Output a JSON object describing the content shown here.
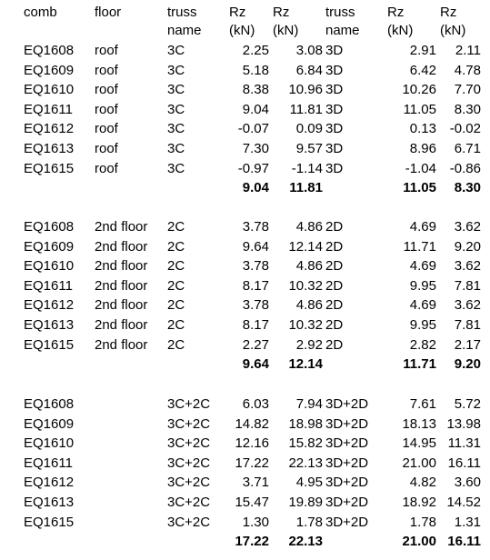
{
  "headers": {
    "comb": "comb",
    "floor": "floor",
    "truss1": [
      "truss",
      "name"
    ],
    "rz1": [
      "Rz",
      "(kN)"
    ],
    "rz2": [
      "Rz",
      "(kN)"
    ],
    "truss2": [
      "truss",
      "name"
    ],
    "rz3": [
      "Rz",
      "(kN)"
    ],
    "rz4": [
      "Rz",
      "(kN)"
    ]
  },
  "groups": [
    {
      "rows": [
        [
          "EQ1608",
          "roof",
          "3C",
          "2.25",
          "3.08",
          "3D",
          "2.91",
          "2.11"
        ],
        [
          "EQ1609",
          "roof",
          "3C",
          "5.18",
          "6.84",
          "3D",
          "6.42",
          "4.78"
        ],
        [
          "EQ1610",
          "roof",
          "3C",
          "8.38",
          "10.96",
          "3D",
          "10.26",
          "7.70"
        ],
        [
          "EQ1611",
          "roof",
          "3C",
          "9.04",
          "11.81",
          "3D",
          "11.05",
          "8.30"
        ],
        [
          "EQ1612",
          "roof",
          "3C",
          "-0.07",
          "0.09",
          "3D",
          "0.13",
          "-0.02"
        ],
        [
          "EQ1613",
          "roof",
          "3C",
          "7.30",
          "9.57",
          "3D",
          "8.96",
          "6.71"
        ],
        [
          "EQ1615",
          "roof",
          "3C",
          "-0.97",
          "-1.14",
          "3D",
          "-1.04",
          "-0.86"
        ]
      ],
      "max": [
        "9.04",
        "11.81",
        "11.05",
        "8.30"
      ]
    },
    {
      "rows": [
        [
          "EQ1608",
          "2nd floor",
          "2C",
          "3.78",
          "4.86",
          "2D",
          "4.69",
          "3.62"
        ],
        [
          "EQ1609",
          "2nd floor",
          "2C",
          "9.64",
          "12.14",
          "2D",
          "11.71",
          "9.20"
        ],
        [
          "EQ1610",
          "2nd floor",
          "2C",
          "3.78",
          "4.86",
          "2D",
          "4.69",
          "3.62"
        ],
        [
          "EQ1611",
          "2nd floor",
          "2C",
          "8.17",
          "10.32",
          "2D",
          "9.95",
          "7.81"
        ],
        [
          "EQ1612",
          "2nd floor",
          "2C",
          "3.78",
          "4.86",
          "2D",
          "4.69",
          "3.62"
        ],
        [
          "EQ1613",
          "2nd floor",
          "2C",
          "8.17",
          "10.32",
          "2D",
          "9.95",
          "7.81"
        ],
        [
          "EQ1615",
          "2nd floor",
          "2C",
          "2.27",
          "2.92",
          "2D",
          "2.82",
          "2.17"
        ]
      ],
      "max": [
        "9.64",
        "12.14",
        "11.71",
        "9.20"
      ]
    },
    {
      "rows": [
        [
          "EQ1608",
          "",
          "3C+2C",
          "6.03",
          "7.94",
          "3D+2D",
          "7.61",
          "5.72"
        ],
        [
          "EQ1609",
          "",
          "3C+2C",
          "14.82",
          "18.98",
          "3D+2D",
          "18.13",
          "13.98"
        ],
        [
          "EQ1610",
          "",
          "3C+2C",
          "12.16",
          "15.82",
          "3D+2D",
          "14.95",
          "11.31"
        ],
        [
          "EQ1611",
          "",
          "3C+2C",
          "17.22",
          "22.13",
          "3D+2D",
          "21.00",
          "16.11"
        ],
        [
          "EQ1612",
          "",
          "3C+2C",
          "3.71",
          "4.95",
          "3D+2D",
          "4.82",
          "3.60"
        ],
        [
          "EQ1613",
          "",
          "3C+2C",
          "15.47",
          "19.89",
          "3D+2D",
          "18.92",
          "14.52"
        ],
        [
          "EQ1615",
          "",
          "3C+2C",
          "1.30",
          "1.78",
          "3D+2D",
          "1.78",
          "1.31"
        ]
      ],
      "max": [
        "17.22",
        "22.13",
        "21.00",
        "16.11"
      ]
    }
  ]
}
